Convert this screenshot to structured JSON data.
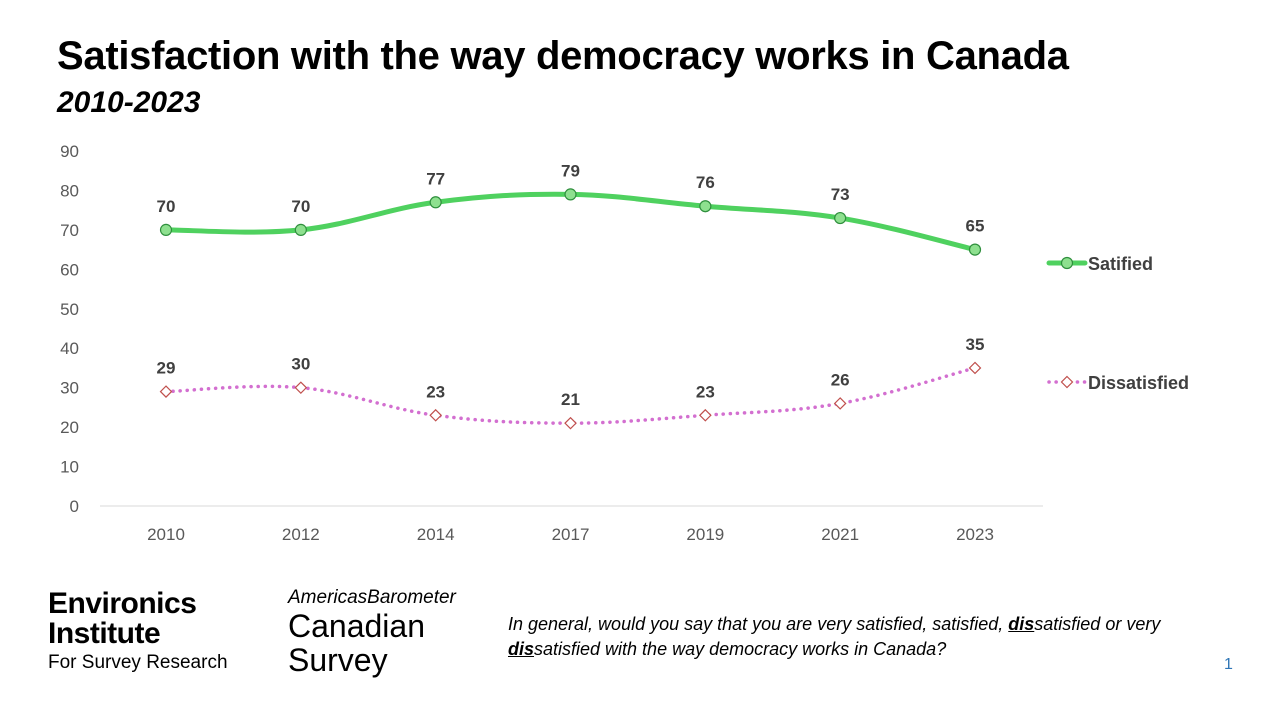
{
  "chart_data": {
    "type": "line",
    "title": "Satisfaction with the way democracy works in Canada",
    "subtitle": "2010-2023",
    "categories": [
      "2010",
      "2012",
      "2014",
      "2017",
      "2019",
      "2021",
      "2023"
    ],
    "ylim": [
      0,
      90
    ],
    "yticks": [
      0,
      10,
      20,
      30,
      40,
      50,
      60,
      70,
      80,
      90
    ],
    "grid": false,
    "legend_position": "right",
    "series": [
      {
        "name": "Satified",
        "values": [
          70,
          70,
          77,
          79,
          76,
          73,
          65
        ],
        "color": "#4fd15f",
        "style": "solid",
        "marker": "circle"
      },
      {
        "name": "Dissatisfied",
        "values": [
          29,
          30,
          23,
          21,
          23,
          26,
          35
        ],
        "color": "#d36fd0",
        "style": "dotted",
        "marker": "diamond",
        "marker_color": "#c0504d"
      }
    ]
  },
  "logos": {
    "environics": {
      "line1": "Environics",
      "line2": "Institute",
      "line3": "For Survey Research"
    },
    "americas": {
      "top": "AmericasBarometer",
      "line1": "Canadian",
      "line2": "Survey"
    }
  },
  "question": {
    "p1": "In general, would you say that you are very satisfied, satisfied, ",
    "e1": "dis",
    "p2": "satisfied or very ",
    "e2": "dis",
    "p3": "satisfied with the way democracy works in Canada?"
  },
  "page_number": "1"
}
